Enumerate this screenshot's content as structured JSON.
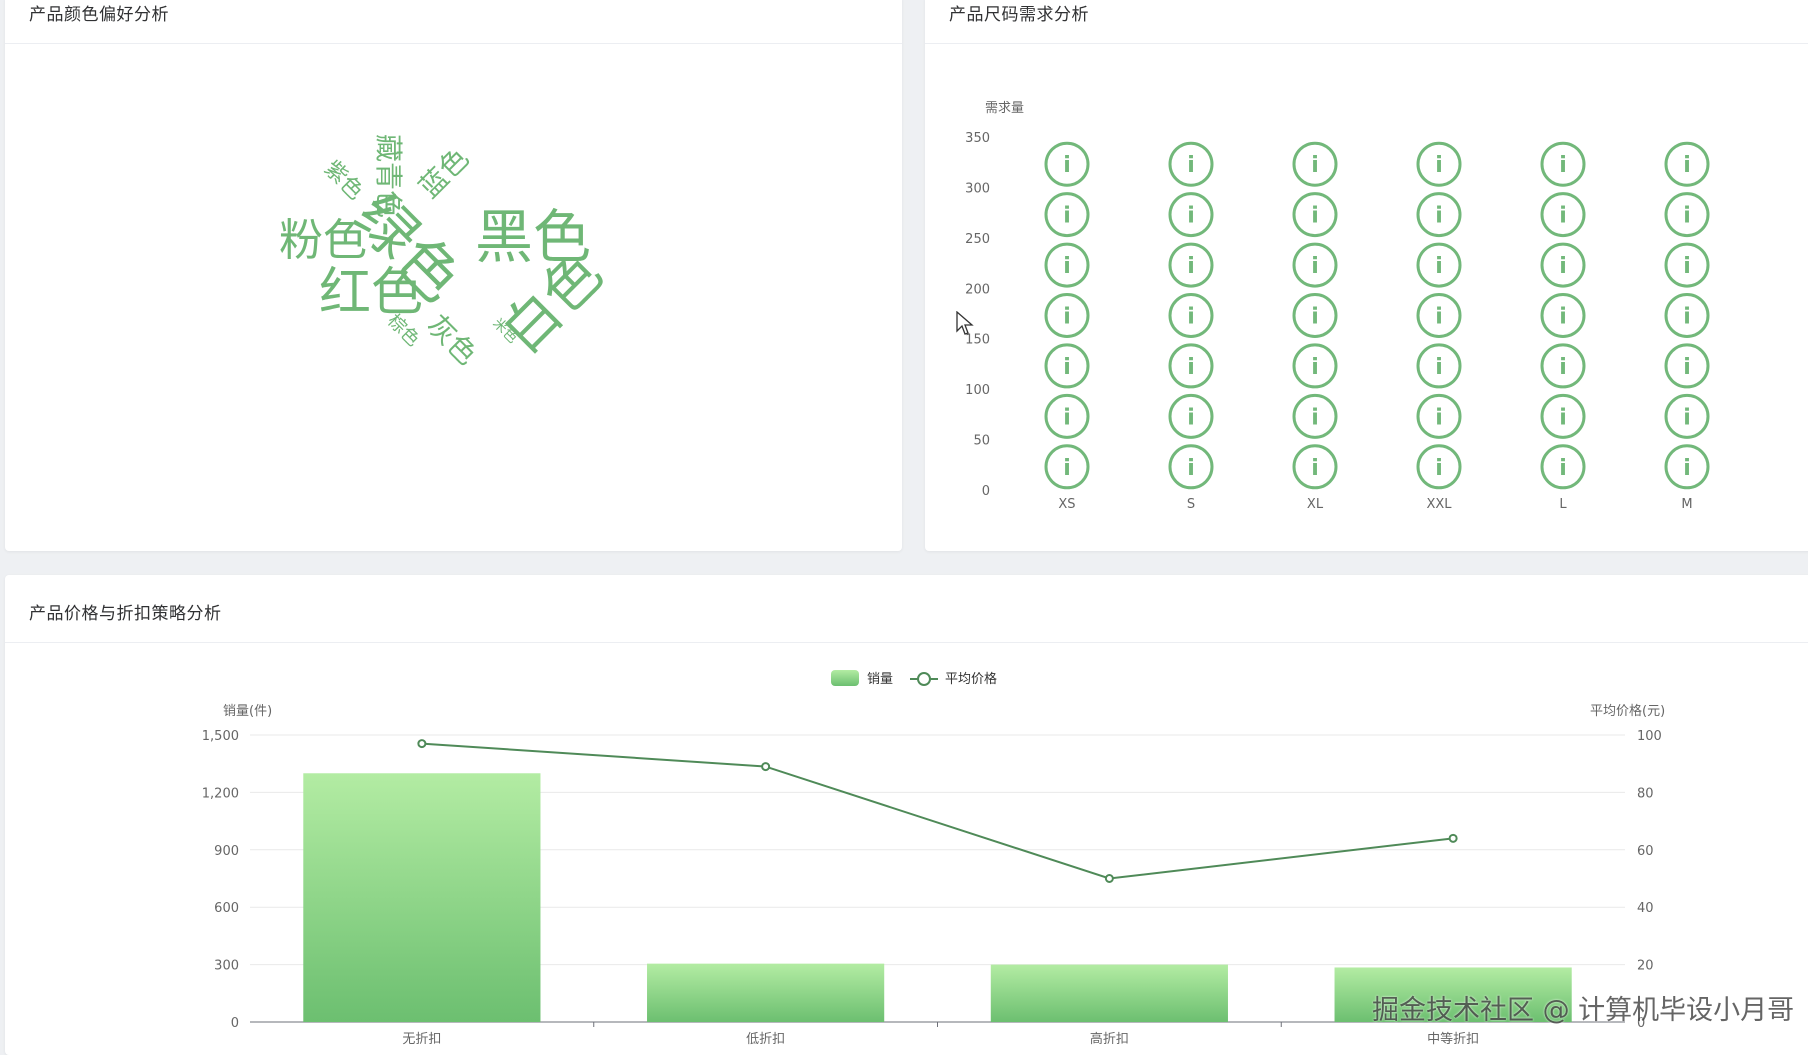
{
  "panels": {
    "color": {
      "title": "产品颜色偏好分析"
    },
    "size": {
      "title": "产品尺码需求分析"
    },
    "price": {
      "title": "产品价格与折扣策略分析"
    }
  },
  "colors": {
    "word": "#6fb776",
    "icon": "#72b87a",
    "bar_top": "#b3eca3",
    "bar_bottom": "#6cbf70",
    "line": "#4f8a58",
    "axis_text": "#666666"
  },
  "chart_data": [
    {
      "type": "wordcloud",
      "words": [
        {
          "text": "绿色",
          "weight": 10
        },
        {
          "text": "黑色",
          "weight": 8
        },
        {
          "text": "白色",
          "weight": 8
        },
        {
          "text": "红色",
          "weight": 7
        },
        {
          "text": "粉色",
          "weight": 6
        },
        {
          "text": "藏青色",
          "weight": 4
        },
        {
          "text": "蓝色",
          "weight": 4
        },
        {
          "text": "紫色",
          "weight": 3
        },
        {
          "text": "灰色",
          "weight": 4
        },
        {
          "text": "棕色",
          "weight": 2
        },
        {
          "text": "米色",
          "weight": 1
        }
      ]
    },
    {
      "type": "pictorial-bar",
      "title": "",
      "ylabel": "需求量",
      "categories": [
        "XS",
        "S",
        "XL",
        "XXL",
        "L",
        "M"
      ],
      "values": [
        350,
        350,
        350,
        350,
        350,
        350
      ],
      "ylim": [
        0,
        350
      ],
      "yticks": [
        "0",
        "50",
        "100",
        "150",
        "200",
        "250",
        "300",
        "350"
      ],
      "icon": "info-circle-icon",
      "icon_glyph": "i"
    },
    {
      "type": "bar",
      "legend": [
        {
          "name": "销量",
          "kind": "bar"
        },
        {
          "name": "平均价格",
          "kind": "line"
        }
      ],
      "categories": [
        "无折扣",
        "低折扣",
        "高折扣",
        "中等折扣"
      ],
      "series": [
        {
          "name": "销量",
          "type": "bar",
          "axis": "left",
          "values": [
            1300,
            305,
            300,
            285
          ]
        },
        {
          "name": "平均价格",
          "type": "line",
          "axis": "right",
          "values": [
            97,
            89,
            50,
            64
          ]
        }
      ],
      "ylabel_left": "销量(件)",
      "ylabel_right": "平均价格(元)",
      "ylim_left": [
        0,
        1500
      ],
      "ylim_right": [
        0,
        100
      ],
      "yticks_left": [
        "0",
        "300",
        "600",
        "900",
        "1,200",
        "1,500"
      ],
      "yticks_right": [
        "0",
        "20",
        "40",
        "60",
        "80",
        "100"
      ],
      "legend_position": "top-center",
      "grid": true
    }
  ],
  "watermark": "掘金技术社区 @ 计算机毕设小月哥"
}
